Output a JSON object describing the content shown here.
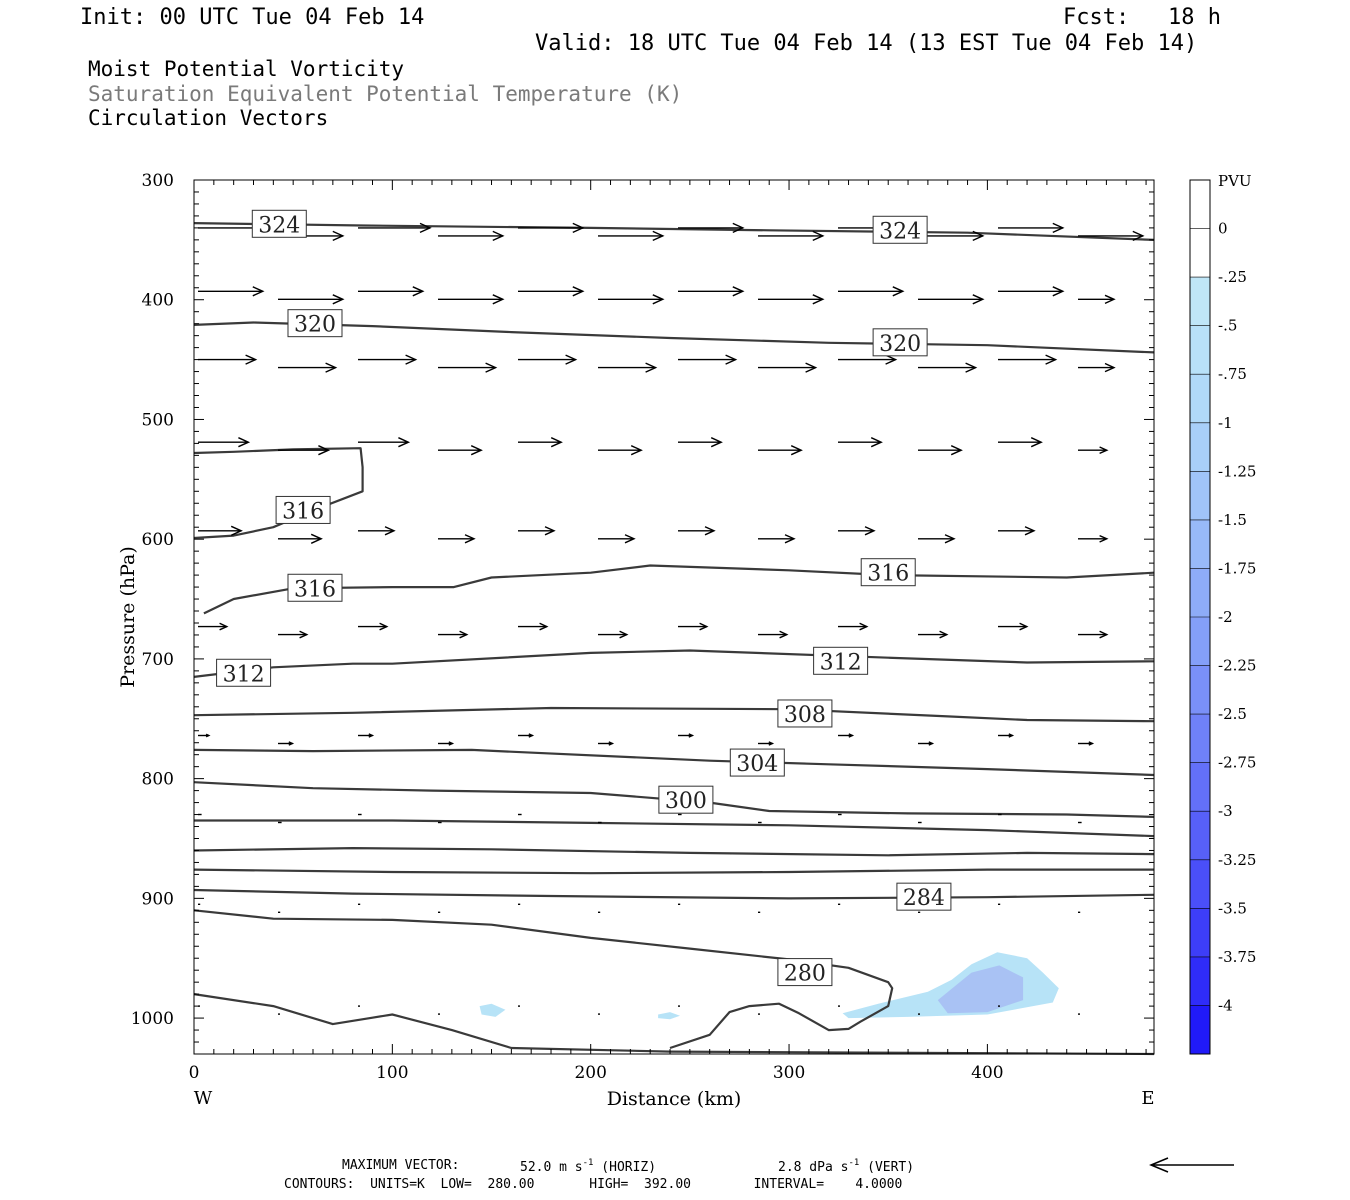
{
  "header": {
    "init": "Init: 00 UTC Tue 04 Feb 14",
    "fcst_label": "Fcst:",
    "fcst_value": "18 h",
    "valid": "Valid: 18 UTC Tue 04 Feb 14 (13 EST Tue 04 Feb 14)"
  },
  "titles": {
    "line1": "Moist Potential Vorticity",
    "line2": "Saturation Equivalent Potential Temperature (K)",
    "line3": "Circulation Vectors"
  },
  "footer": {
    "max_vector_label": "MAXIMUM VECTOR:",
    "max_vector_horiz": "52.0 m s",
    "horiz_sup": "-1",
    "horiz_tag": "(HORIZ)",
    "max_vector_vert": "2.8 dPa s",
    "vert_sup": "-1",
    "vert_tag": "(VERT)",
    "contours": "CONTOURS:  UNITS=K  LOW=  280.00       HIGH=  392.00        INTERVAL=    4.0000"
  },
  "colors": {
    "contour": "#3a3a3a",
    "vector": "#000000",
    "shade_light": "#b7e3f7",
    "shade_mid": "#a9c2f4"
  },
  "chart_data": {
    "type": "cross-section",
    "xlabel": "Distance (km)",
    "ylabel": "Pressure (hPa)",
    "xlim": [
      0,
      484
    ],
    "ylim": [
      1030,
      300
    ],
    "x_ticks": [
      0,
      100,
      200,
      300,
      400
    ],
    "y_ticks": [
      300,
      400,
      500,
      600,
      700,
      800,
      900,
      1000
    ],
    "x_end_labels": [
      "W",
      "E"
    ],
    "contour_labels": [
      {
        "text": "324",
        "x": 43,
        "p": 337
      },
      {
        "text": "324",
        "x": 356,
        "p": 342
      },
      {
        "text": "320",
        "x": 61,
        "p": 420
      },
      {
        "text": "320",
        "x": 356,
        "p": 436
      },
      {
        "text": "316",
        "x": 55,
        "p": 576
      },
      {
        "text": "316",
        "x": 61,
        "p": 641
      },
      {
        "text": "316",
        "x": 350,
        "p": 628
      },
      {
        "text": "312",
        "x": 25,
        "p": 712
      },
      {
        "text": "312",
        "x": 326,
        "p": 702
      },
      {
        "text": "308",
        "x": 308,
        "p": 746
      },
      {
        "text": "304",
        "x": 284,
        "p": 787
      },
      {
        "text": "300",
        "x": 248,
        "p": 818
      },
      {
        "text": "284",
        "x": 368,
        "p": 899
      },
      {
        "text": "280",
        "x": 308,
        "p": 962
      }
    ],
    "contours": [
      {
        "value": 324,
        "points": [
          [
            0,
            336
          ],
          [
            85,
            338
          ],
          [
            200,
            340
          ],
          [
            290,
            342
          ],
          [
            390,
            344
          ],
          [
            484,
            350
          ]
        ]
      },
      {
        "value": 320,
        "points": [
          [
            0,
            421
          ],
          [
            30,
            419
          ],
          [
            90,
            422
          ],
          [
            160,
            427
          ],
          [
            240,
            432
          ],
          [
            320,
            436
          ],
          [
            400,
            438
          ],
          [
            484,
            444
          ]
        ]
      },
      {
        "value": 316,
        "points": [
          [
            0,
            528
          ],
          [
            20,
            527
          ],
          [
            50,
            525
          ],
          [
            84,
            524
          ],
          [
            85,
            540
          ],
          [
            85,
            560
          ],
          [
            60,
            576
          ],
          [
            40,
            590
          ],
          [
            20,
            597
          ],
          [
            0,
            599
          ]
        ]
      },
      {
        "value": 316,
        "points": [
          [
            5,
            662
          ],
          [
            20,
            650
          ],
          [
            50,
            641
          ],
          [
            100,
            640
          ],
          [
            131,
            640
          ],
          [
            150,
            632
          ],
          [
            200,
            628
          ],
          [
            230,
            622
          ],
          [
            300,
            626
          ],
          [
            350,
            630
          ],
          [
            440,
            632
          ],
          [
            484,
            628
          ]
        ]
      },
      {
        "value": 312,
        "points": [
          [
            0,
            715
          ],
          [
            40,
            707
          ],
          [
            80,
            704
          ],
          [
            100,
            704
          ],
          [
            200,
            695
          ],
          [
            250,
            693
          ],
          [
            350,
            699
          ],
          [
            420,
            703
          ],
          [
            484,
            702
          ]
        ]
      },
      {
        "value": 308,
        "points": [
          [
            0,
            747
          ],
          [
            80,
            745
          ],
          [
            180,
            741
          ],
          [
            300,
            742
          ],
          [
            380,
            748
          ],
          [
            420,
            751
          ],
          [
            484,
            752
          ]
        ]
      },
      {
        "value": 304,
        "points": [
          [
            0,
            776
          ],
          [
            60,
            777
          ],
          [
            140,
            776
          ],
          [
            260,
            785
          ],
          [
            320,
            788
          ],
          [
            400,
            792
          ],
          [
            484,
            797
          ]
        ]
      },
      {
        "value": 300,
        "points": [
          [
            0,
            803
          ],
          [
            60,
            808
          ],
          [
            120,
            810
          ],
          [
            200,
            812
          ],
          [
            260,
            820
          ],
          [
            290,
            827
          ],
          [
            360,
            829
          ],
          [
            440,
            830
          ],
          [
            484,
            832
          ]
        ]
      },
      {
        "value": 296,
        "points": [
          [
            0,
            835
          ],
          [
            100,
            835
          ],
          [
            200,
            837
          ],
          [
            300,
            839
          ],
          [
            400,
            843
          ],
          [
            484,
            848
          ]
        ]
      },
      {
        "value": 292,
        "points": [
          [
            0,
            860
          ],
          [
            80,
            858
          ],
          [
            150,
            859
          ],
          [
            250,
            862
          ],
          [
            350,
            864
          ],
          [
            420,
            862
          ],
          [
            484,
            863
          ]
        ]
      },
      {
        "value": 288,
        "points": [
          [
            0,
            876
          ],
          [
            100,
            878
          ],
          [
            200,
            879
          ],
          [
            300,
            878
          ],
          [
            400,
            876
          ],
          [
            484,
            876
          ]
        ]
      },
      {
        "value": 284,
        "points": [
          [
            0,
            893
          ],
          [
            80,
            896
          ],
          [
            180,
            898
          ],
          [
            300,
            900
          ],
          [
            400,
            899
          ],
          [
            484,
            897
          ]
        ]
      },
      {
        "value": 280,
        "points": [
          [
            0,
            910
          ],
          [
            40,
            917
          ],
          [
            100,
            918
          ],
          [
            150,
            922
          ],
          [
            200,
            933
          ],
          [
            250,
            942
          ],
          [
            300,
            951
          ],
          [
            330,
            958
          ],
          [
            350,
            970
          ],
          [
            352,
            975
          ],
          [
            350,
            990
          ],
          [
            336,
            1003
          ],
          [
            330,
            1009
          ],
          [
            320,
            1010
          ],
          [
            305,
            996
          ],
          [
            295,
            988
          ],
          [
            280,
            990
          ],
          [
            270,
            995
          ],
          [
            260,
            1014
          ],
          [
            240,
            1025
          ]
        ]
      },
      {
        "value": 276,
        "points": [
          [
            0,
            980
          ],
          [
            40,
            990
          ],
          [
            70,
            1005
          ],
          [
            100,
            997
          ],
          [
            130,
            1010
          ],
          [
            160,
            1025
          ],
          [
            240,
            1028
          ],
          [
            484,
            1030
          ]
        ]
      }
    ],
    "pv_shading": [
      {
        "level": -0.25,
        "polygons": [
          [
            [
              144,
              990
            ],
            [
              150,
              988
            ],
            [
              157,
              993
            ],
            [
              152,
              999
            ],
            [
              145,
              997
            ]
          ],
          [
            [
              234,
              997
            ],
            [
              240,
              995
            ],
            [
              245,
              998
            ],
            [
              240,
              1001
            ],
            [
              234,
              1000
            ]
          ],
          [
            [
              327,
              996
            ],
            [
              345,
              988
            ],
            [
              370,
              978
            ],
            [
              382,
              968
            ],
            [
              392,
              955
            ],
            [
              405,
              945
            ],
            [
              420,
              950
            ],
            [
              428,
              962
            ],
            [
              436,
              975
            ],
            [
              433,
              987
            ],
            [
              400,
              997
            ],
            [
              360,
              999
            ],
            [
              330,
              1000
            ]
          ]
        ]
      },
      {
        "level": -0.5,
        "polygons": [
          [
            [
              375,
              985
            ],
            [
              392,
              962
            ],
            [
              406,
              956
            ],
            [
              418,
              966
            ],
            [
              418,
              985
            ],
            [
              400,
              995
            ],
            [
              380,
              996
            ]
          ]
        ]
      }
    ],
    "colorbar": {
      "unit": "PVU",
      "labels": [
        "0",
        "-.25",
        "-.5",
        "-.75",
        "-1",
        "-1.25",
        "-1.5",
        "-1.75",
        "-2",
        "-2.25",
        "-2.5",
        "-2.75",
        "-3",
        "-3.25",
        "-3.5",
        "-3.75",
        "-4"
      ],
      "colors": [
        "#ffffff",
        "#ffffff",
        "#bfe6f7",
        "#b8e1f8",
        "#b0d9f8",
        "#a8cff8",
        "#a0c4f8",
        "#98b9f8",
        "#8eacf8",
        "#849ff8",
        "#7a90f8",
        "#6f81f8",
        "#6370f8",
        "#5760f8",
        "#4a4ff8",
        "#3d3ef8",
        "#2f2cf8",
        "#201af8"
      ]
    },
    "vector_rows": [
      {
        "p": 340,
        "u": [
          1.0,
          0.9,
          1.0,
          0.9,
          0.9,
          0.9,
          0.9,
          0.9,
          0.9,
          0.9,
          0.9,
          0.9
        ]
      },
      {
        "p": 393,
        "u": [
          0.9,
          0.9,
          0.9,
          0.9,
          0.9,
          0.9,
          0.9,
          0.9,
          0.9,
          0.9,
          0.9,
          0.5
        ]
      },
      {
        "p": 450,
        "u": [
          0.8,
          0.8,
          0.8,
          0.8,
          0.8,
          0.8,
          0.8,
          0.8,
          0.8,
          0.8,
          0.8,
          0.5
        ]
      },
      {
        "p": 519,
        "u": [
          0.7,
          0.7,
          0.7,
          0.6,
          0.6,
          0.6,
          0.6,
          0.6,
          0.6,
          0.6,
          0.6,
          0.4
        ]
      },
      {
        "p": 593,
        "u": [
          0.6,
          0.6,
          0.5,
          0.5,
          0.5,
          0.5,
          0.5,
          0.5,
          0.5,
          0.5,
          0.5,
          0.4
        ]
      },
      {
        "p": 673,
        "u": [
          0.4,
          0.4,
          0.4,
          0.4,
          0.4,
          0.4,
          0.4,
          0.4,
          0.4,
          0.4,
          0.4,
          0.4
        ]
      },
      {
        "p": 764,
        "u": [
          0.15,
          0.2,
          0.2,
          0.2,
          0.2,
          0.2,
          0.2,
          0.2,
          0.2,
          0.2,
          0.2,
          0.2
        ]
      },
      {
        "p": 830,
        "u": [
          0.05,
          0.05,
          0.05,
          0.05,
          0.05,
          0.05,
          0.05,
          0.05,
          0.05,
          0.05,
          0.05,
          0.05
        ]
      },
      {
        "p": 905,
        "u": [
          0.03,
          0.03,
          0.03,
          0.03,
          0.03,
          0.03,
          0.03,
          0.03,
          0.03,
          0.03,
          0.03,
          0.03
        ]
      },
      {
        "p": 990,
        "u": [
          0.02,
          0.02,
          0.02,
          0.02,
          0.02,
          0.02,
          0.02,
          0.02,
          0.02,
          0.02,
          0.02,
          0.02
        ]
      }
    ]
  }
}
